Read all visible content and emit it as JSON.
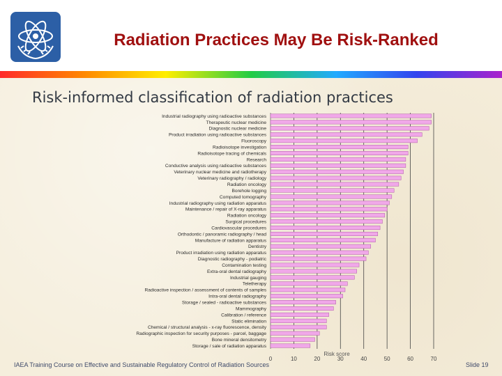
{
  "slide": {
    "title": "Radiation Practices May Be Risk-Ranked",
    "subtitle": "Risk-informed classification of radiation practices",
    "footer": "IAEA Training Course on Effective and Sustainable Regulatory Control of Radiation Sources",
    "slide_number": "Slide 19",
    "logo_icon": "iaea-atom-olive-logo-icon"
  },
  "colors": {
    "title": "#a01010",
    "bar_fill": "#f0a8e8",
    "bar_stroke": "#b25aa8",
    "logo_blue": "#2c5fa6"
  },
  "chart_data": {
    "type": "bar",
    "orientation": "horizontal",
    "title": "",
    "xlabel": "Risk score",
    "ylabel": "",
    "xlim": [
      0,
      70
    ],
    "xticks": [
      0,
      10,
      20,
      30,
      40,
      50,
      60,
      70
    ],
    "grid": true,
    "legend": "none",
    "categories": [
      "Industrial radiography using radioactive substances",
      "Therapeutic nuclear medicine",
      "Diagnostic nuclear medicine",
      "Product irradiation using radioactive substances",
      "Fluoroscopy",
      "Radioisotope investigation",
      "Radioisotope tracing of chemicals",
      "Research",
      "Conductive analysis using radioactive substances",
      "Veterinary nuclear medicine and radiotherapy",
      "Veterinary radiography / radiology",
      "Radiation oncology",
      "Borehole logging",
      "Computed tomography",
      "Industrial radiography using radiation apparatus",
      "Maintenance / repair of X-ray apparatus",
      "Radiation oncology",
      "Surgical procedures",
      "Cardiovascular procedures",
      "Orthodontic / panoramic radiography / head",
      "Manufacture of radiation apparatus",
      "Dentistry",
      "Product irradiation using radiation apparatus",
      "Diagnostic radiography - podiatric",
      "Contamination testing",
      "Extra-oral dental radiography",
      "Industrial gauging",
      "Teletherapy",
      "Radioactive inspection / assessment of contents of samples",
      "Intra-oral dental radiography",
      "Storage / sealed - radioactive substances",
      "Mammography",
      "Calibration / reference",
      "Static elimination",
      "Chemical / structural analysis - x-ray fluorescence, density",
      "Radiographic inspection for security purposes - parcel, baggage",
      "Bone mineral densitometry",
      "Storage / sale of radiation apparatus"
    ],
    "values": [
      69,
      69,
      68,
      65,
      63,
      59,
      59,
      58,
      58,
      57,
      56,
      55,
      53,
      52,
      51,
      50,
      49,
      48,
      47,
      46,
      45,
      43,
      42,
      41,
      38,
      37,
      36,
      33,
      32,
      31,
      28,
      27,
      25,
      24,
      24,
      21,
      19,
      17
    ]
  }
}
